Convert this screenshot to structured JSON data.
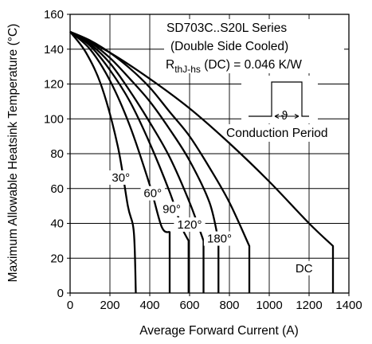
{
  "chart_data": {
    "type": "line",
    "xlabel": "Average Forward Current (A)",
    "ylabel": "Maximum Allowable Heatsink Temperature (°C)",
    "xlim": [
      0,
      1400
    ],
    "ylim": [
      0,
      160
    ],
    "x_ticks": [
      "0",
      "200",
      "400",
      "600",
      "800",
      "1000",
      "1200",
      "1400"
    ],
    "y_ticks": [
      "0",
      "20",
      "40",
      "60",
      "80",
      "100",
      "120",
      "140",
      "160"
    ],
    "grid": true,
    "annotations": {
      "line1": "SD703C..S20L Series",
      "line2": "(Double Side Cooled)",
      "rth_main": "R",
      "rth_sub": "thJ-hs",
      "rth_rest": " (DC) = 0.046 K/W",
      "conduction_label": "Conduction Period",
      "theta_symbol": "ϑ"
    },
    "series": [
      {
        "label": "30°",
        "x": [
          0,
          80,
          160,
          240,
          290,
          320,
          330,
          330
        ],
        "y": [
          150,
          138,
          118,
          84,
          50,
          35,
          0,
          0
        ]
      },
      {
        "label": "60°",
        "x": [
          0,
          100,
          200,
          300,
          400,
          460,
          500,
          500
        ],
        "y": [
          150,
          140,
          122,
          96,
          62,
          38,
          35,
          0
        ]
      },
      {
        "label": "90°",
        "x": [
          0,
          100,
          200,
          300,
          400,
          500,
          560,
          595,
          595
        ],
        "y": [
          150,
          142,
          128,
          110,
          86,
          58,
          38,
          30,
          0
        ]
      },
      {
        "label": "120°",
        "x": [
          0,
          100,
          200,
          300,
          400,
          500,
          600,
          670,
          670
        ],
        "y": [
          150,
          143,
          132,
          116,
          98,
          78,
          52,
          30,
          0
        ]
      },
      {
        "label": "180°",
        "x": [
          0,
          100,
          200,
          300,
          400,
          500,
          600,
          700,
          745,
          745
        ],
        "y": [
          150,
          144,
          135,
          123,
          110,
          94,
          76,
          52,
          30,
          0
        ]
      },
      {
        "label": "",
        "x": [
          0,
          100,
          200,
          300,
          400,
          500,
          600,
          700,
          800,
          900,
          900
        ],
        "y": [
          150,
          145,
          138,
          129,
          118,
          104,
          90,
          72,
          52,
          27,
          0
        ]
      },
      {
        "label": "DC",
        "x": [
          0,
          200,
          400,
          600,
          800,
          1000,
          1200,
          1320,
          1320
        ],
        "y": [
          150,
          138,
          123,
          106,
          86,
          64,
          40,
          27,
          0
        ]
      }
    ],
    "label_positions": [
      {
        "label": "30°",
        "x": 255,
        "y": 64
      },
      {
        "label": "60°",
        "x": 415,
        "y": 55
      },
      {
        "label": "90°",
        "x": 510,
        "y": 46
      },
      {
        "label": "120°",
        "x": 600,
        "y": 37
      },
      {
        "label": "180°",
        "x": 750,
        "y": 29
      },
      {
        "label": "DC",
        "x": 1175,
        "y": 12
      }
    ]
  }
}
